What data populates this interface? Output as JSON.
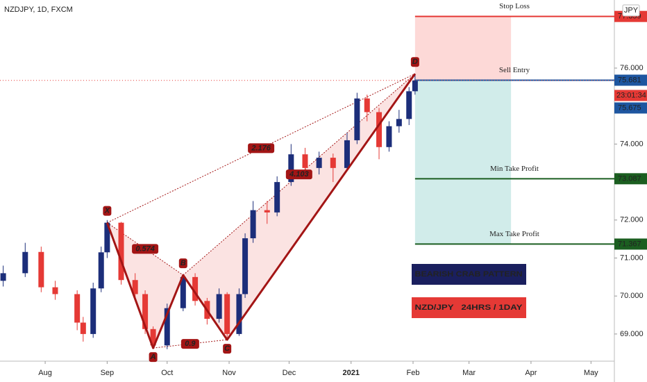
{
  "chart_data": {
    "type": "candlestick",
    "title": "NZDJPY, 1D, FXCM",
    "currency": "JPY",
    "countdown": "23:01:34",
    "last_price": 75.675,
    "up_color": "#1c2e7a",
    "down_color": "#e53935",
    "xlim": [
      -22.6,
      284.7
    ],
    "xticks": [
      {
        "value": 0,
        "label": "Aug"
      },
      {
        "value": 31,
        "label": "Sep"
      },
      {
        "value": 61,
        "label": "Oct"
      },
      {
        "value": 92,
        "label": "Nov"
      },
      {
        "value": 122,
        "label": "Dec"
      },
      {
        "value": 153,
        "label": "2021"
      },
      {
        "value": 184,
        "label": "Feb"
      },
      {
        "value": 212,
        "label": "Mar"
      },
      {
        "value": 243,
        "label": "Apr"
      },
      {
        "value": 273,
        "label": "May"
      }
    ],
    "ylim": [
      68.285,
      77.792
    ],
    "yticks": [
      {
        "value": 69,
        "label": "69.000"
      },
      {
        "value": 70,
        "label": "70.000"
      },
      {
        "value": 71,
        "label": "71.000"
      },
      {
        "value": 72,
        "label": "72.000"
      },
      {
        "value": 74,
        "label": "74.000"
      },
      {
        "value": 76,
        "label": "76.000"
      }
    ],
    "candles": {
      "x": [
        -21,
        -10,
        -2,
        5,
        16,
        19,
        24,
        28,
        31,
        38,
        45,
        50,
        54,
        61,
        69,
        75,
        81,
        87,
        91,
        97,
        100,
        104,
        111,
        116,
        123,
        130,
        137,
        144,
        151,
        156,
        161,
        167,
        172,
        177,
        182,
        185
      ],
      "open": [
        70.4,
        70.6,
        71.16,
        70.23,
        70.05,
        69.3,
        69.0,
        70.2,
        71.15,
        71.93,
        70.42,
        70.05,
        69.13,
        68.7,
        69.68,
        70.5,
        69.87,
        69.4,
        70.05,
        69.0,
        70.05,
        71.52,
        72.26,
        72.2,
        73.0,
        73.73,
        73.37,
        73.64,
        73.37,
        74.1,
        75.2,
        74.84,
        73.92,
        74.47,
        74.66,
        75.39
      ],
      "high": [
        70.8,
        71.4,
        71.3,
        70.4,
        70.15,
        69.45,
        70.35,
        71.3,
        72.0,
        71.95,
        70.6,
        70.15,
        69.2,
        69.8,
        70.55,
        70.6,
        69.95,
        70.2,
        70.1,
        70.2,
        71.65,
        72.5,
        72.5,
        73.15,
        74.0,
        73.9,
        73.8,
        73.75,
        74.3,
        75.35,
        75.3,
        74.95,
        74.6,
        74.9,
        75.5,
        75.85
      ],
      "low": [
        70.25,
        70.5,
        70.1,
        69.9,
        69.1,
        68.8,
        68.9,
        70.1,
        71.0,
        70.3,
        69.9,
        69.0,
        68.63,
        68.6,
        69.6,
        69.75,
        69.25,
        69.3,
        68.85,
        68.95,
        69.95,
        71.4,
        71.9,
        72.1,
        72.9,
        73.2,
        73.2,
        73.0,
        73.3,
        74.0,
        74.6,
        73.6,
        73.8,
        74.3,
        74.5,
        75.3
      ],
      "close": [
        70.6,
        71.16,
        70.23,
        70.05,
        69.3,
        69.0,
        70.2,
        71.15,
        71.93,
        70.42,
        70.05,
        69.13,
        68.7,
        69.68,
        70.5,
        69.87,
        69.4,
        70.05,
        69.0,
        70.05,
        71.52,
        72.26,
        72.2,
        73.0,
        73.73,
        73.37,
        73.64,
        73.37,
        74.1,
        75.2,
        74.84,
        73.92,
        74.47,
        74.66,
        75.39,
        75.675
      ]
    },
    "pattern": {
      "color": "#a31515",
      "points": [
        {
          "label": "X",
          "x": 31,
          "value": 71.93
        },
        {
          "label": "A",
          "x": 54,
          "value": 68.63
        },
        {
          "label": "B",
          "x": 69,
          "value": 70.55
        },
        {
          "label": "C",
          "x": 91,
          "value": 68.85
        },
        {
          "label": "D",
          "x": 185,
          "value": 75.85
        }
      ],
      "ratios": [
        0.574,
        2.176,
        0.9,
        4.103
      ]
    },
    "position": {
      "x_start": 185,
      "x_end": 233
    },
    "levels": [
      {
        "name": "Stop Loss",
        "value": 77.359,
        "color": "#e53935"
      },
      {
        "name": "Sell Entry",
        "value": 75.681,
        "color": "#1e56a0"
      },
      {
        "name": "Min Take Profit",
        "value": 73.087,
        "color": "#1b5e20"
      },
      {
        "name": "Max Take Profit",
        "value": 71.367,
        "color": "#1b5e20"
      }
    ],
    "annotations": [
      {
        "text": "BEARISH CRAB PATTERN",
        "color": "#1a1f5e"
      },
      {
        "text": "NZD/JPY   24HRS / 1DAY",
        "color": "#e53935"
      }
    ]
  }
}
